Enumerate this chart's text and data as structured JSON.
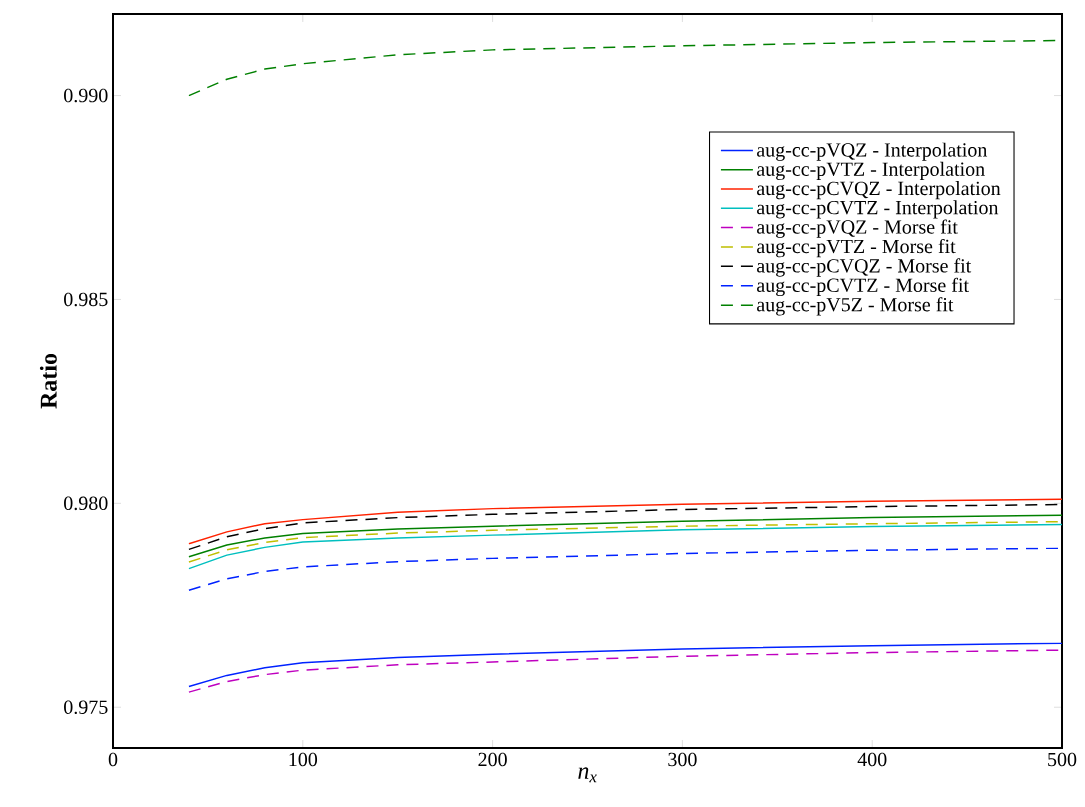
{
  "chart_data": {
    "type": "line",
    "xlabel": "n$_{x}$",
    "ylabel": "Ratio",
    "x": [
      40,
      60,
      80,
      100,
      150,
      200,
      300,
      400,
      500
    ],
    "xlim": [
      0,
      500
    ],
    "xticks": [
      0,
      100,
      200,
      300,
      400,
      500
    ],
    "ylim": [
      0.974,
      0.992
    ],
    "yticks": [
      {
        "value": 0.975,
        "label": "0.975"
      },
      {
        "value": 0.98,
        "label": "0.980"
      },
      {
        "value": 0.985,
        "label": "0.985"
      },
      {
        "value": 0.99,
        "label": "0.990"
      }
    ],
    "legend": "top right",
    "series": [
      {
        "name": "aug-cc-pVQZ - Interpolation",
        "color": "#0022ff",
        "line_style": "solid",
        "values": [
          0.97551,
          0.97578,
          0.97597,
          0.97609,
          0.97622,
          0.9763,
          0.97643,
          0.97651,
          0.97657
        ]
      },
      {
        "name": "aug-cc-pVTZ - Interpolation",
        "color": "#008000",
        "line_style": "solid",
        "values": [
          0.97869,
          0.97898,
          0.97915,
          0.97926,
          0.97937,
          0.97944,
          0.97956,
          0.97965,
          0.97971
        ]
      },
      {
        "name": "aug-cc-pCVQZ - Interpolation",
        "color": "#ff2200",
        "line_style": "solid",
        "values": [
          0.97901,
          0.9793,
          0.9795,
          0.9796,
          0.97978,
          0.97987,
          0.97998,
          0.98005,
          0.9801
        ]
      },
      {
        "name": "aug-cc-pCVTZ - Interpolation",
        "color": "#00bfbf",
        "line_style": "solid",
        "values": [
          0.9784,
          0.97873,
          0.97892,
          0.97905,
          0.97915,
          0.97922,
          0.97935,
          0.97943,
          0.97948
        ]
      },
      {
        "name": "aug-cc-pVQZ - Morse fit",
        "color": "#bf00bf",
        "line_style": "dashed",
        "values": [
          0.97537,
          0.97563,
          0.9758,
          0.97591,
          0.97604,
          0.97611,
          0.97625,
          0.97634,
          0.9764
        ]
      },
      {
        "name": "aug-cc-pVTZ - Morse fit",
        "color": "#bfbf00",
        "line_style": "dashed",
        "values": [
          0.97856,
          0.97886,
          0.97904,
          0.97916,
          0.97927,
          0.97934,
          0.97944,
          0.9795,
          0.97955
        ]
      },
      {
        "name": "aug-cc-pCVQZ - Morse fit",
        "color": "#000000",
        "line_style": "dashed",
        "values": [
          0.97887,
          0.97918,
          0.97938,
          0.97952,
          0.97965,
          0.97973,
          0.97985,
          0.97992,
          0.97997
        ]
      },
      {
        "name": "aug-cc-pCVTZ - Morse fit",
        "color": "#0022ff",
        "line_style": "dashed",
        "values": [
          0.97787,
          0.97815,
          0.97833,
          0.97844,
          0.97857,
          0.97865,
          0.97877,
          0.97885,
          0.9789
        ]
      },
      {
        "name": "aug-cc-pV5Z - Morse fit",
        "color": "#008000",
        "line_style": "dashed",
        "values": [
          0.99,
          0.9904,
          0.99065,
          0.99078,
          0.991,
          0.99112,
          0.99122,
          0.9913,
          0.99135
        ]
      }
    ]
  }
}
